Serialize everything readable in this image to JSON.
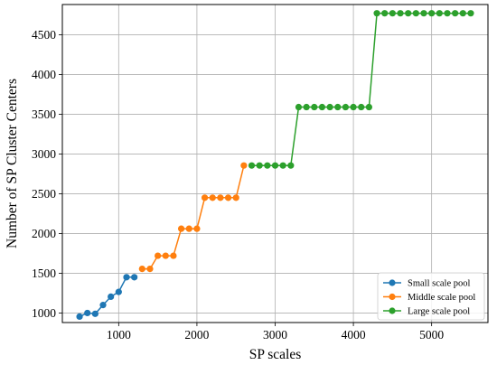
{
  "chart_data": {
    "type": "line",
    "title": "",
    "xlabel": "SP scales",
    "ylabel": "Number of SP Cluster Centers",
    "xlim": [
      280,
      5720
    ],
    "ylim": [
      880,
      4880
    ],
    "xticks": [
      1000,
      2000,
      3000,
      4000,
      5000
    ],
    "yticks": [
      1000,
      1500,
      2000,
      2500,
      3000,
      3500,
      4000,
      4500
    ],
    "grid": true,
    "legend_position": "lower-right",
    "series": [
      {
        "name": "Small scale pool",
        "color": "#1f77b4",
        "x": [
          500,
          600,
          700,
          800,
          900,
          1000,
          1100,
          1200
        ],
        "y": [
          955,
          1000,
          990,
          1100,
          1205,
          1265,
          1450,
          1450
        ]
      },
      {
        "name": "Middle scale pool",
        "color": "#ff7f0e",
        "x": [
          1300,
          1400,
          1500,
          1600,
          1700,
          1800,
          1900,
          2000,
          2100,
          2200,
          2300,
          2400,
          2500,
          2600
        ],
        "y": [
          1555,
          1555,
          1720,
          1720,
          1720,
          2060,
          2060,
          2060,
          2450,
          2450,
          2450,
          2450,
          2450,
          2855
        ]
      },
      {
        "name": "Large scale pool",
        "color": "#2ca02c",
        "x": [
          2700,
          2800,
          2900,
          3000,
          3100,
          3200,
          3300,
          3400,
          3500,
          3600,
          3700,
          3800,
          3900,
          4000,
          4100,
          4200,
          4300,
          4400,
          4500,
          4600,
          4700,
          4800,
          4900,
          5000,
          5100,
          5200,
          5300,
          5400,
          5500
        ],
        "y": [
          2855,
          2855,
          2855,
          2855,
          2855,
          2855,
          3590,
          3590,
          3590,
          3590,
          3590,
          3590,
          3590,
          3590,
          3590,
          3590,
          4770,
          4770,
          4770,
          4770,
          4770,
          4770,
          4770,
          4770,
          4770,
          4770,
          4770,
          4770,
          4770
        ]
      }
    ]
  }
}
